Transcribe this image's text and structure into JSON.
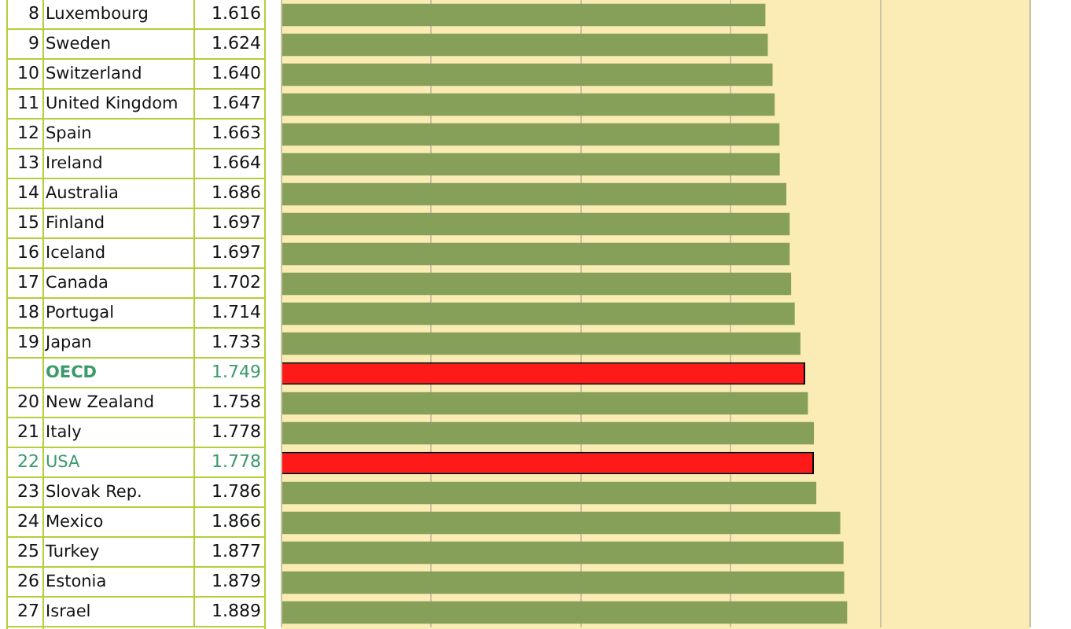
{
  "chart_data": {
    "type": "bar",
    "orientation": "horizontal",
    "categories": [
      "Luxembourg",
      "Sweden",
      "Switzerland",
      "United Kingdom",
      "Spain",
      "Ireland",
      "Australia",
      "Finland",
      "Iceland",
      "Canada",
      "Portugal",
      "Japan",
      "OECD",
      "New Zealand",
      "Italy",
      "USA",
      "Slovak Rep.",
      "Mexico",
      "Turkey",
      "Estonia",
      "Israel"
    ],
    "values": [
      1.616,
      1.624,
      1.64,
      1.647,
      1.663,
      1.664,
      1.686,
      1.697,
      1.697,
      1.702,
      1.714,
      1.733,
      1.749,
      1.758,
      1.778,
      1.778,
      1.786,
      1.866,
      1.877,
      1.879,
      1.889
    ],
    "value_labels": [
      "1.616",
      "1.624",
      "1.640",
      "1.647",
      "1.663",
      "1.664",
      "1.686",
      "1.697",
      "1.697",
      "1.702",
      "1.714",
      "1.733",
      "1.749",
      "1.758",
      "1.778",
      "1.778",
      "1.786",
      "1.866",
      "1.877",
      "1.879",
      "1.889"
    ],
    "colors": [
      "#86a05a",
      "#86a05a",
      "#86a05a",
      "#86a05a",
      "#86a05a",
      "#86a05a",
      "#86a05a",
      "#86a05a",
      "#86a05a",
      "#86a05a",
      "#86a05a",
      "#86a05a",
      "#ff1a1a",
      "#86a05a",
      "#86a05a",
      "#ff1a1a",
      "#86a05a",
      "#86a05a",
      "#86a05a",
      "#86a05a",
      "#86a05a"
    ],
    "y2_categories": [
      "8",
      "9",
      "10",
      "11",
      "12",
      "13",
      "14",
      "15",
      "16",
      "17",
      "18",
      "19",
      null,
      "20",
      "21",
      "22",
      "23",
      "24",
      "25",
      "26",
      "27"
    ],
    "xlim": [
      0,
      2.5
    ],
    "xticks": [
      {
        "value": 0,
        "label": null
      },
      {
        "value": 0.5,
        "label": null
      },
      {
        "value": 1,
        "label": null
      },
      {
        "value": 1.5,
        "label": null
      },
      {
        "value": 2,
        "label": null
      },
      {
        "value": 2.5,
        "label": null
      }
    ],
    "grid": "x",
    "tick_labels": "y"
  }
}
